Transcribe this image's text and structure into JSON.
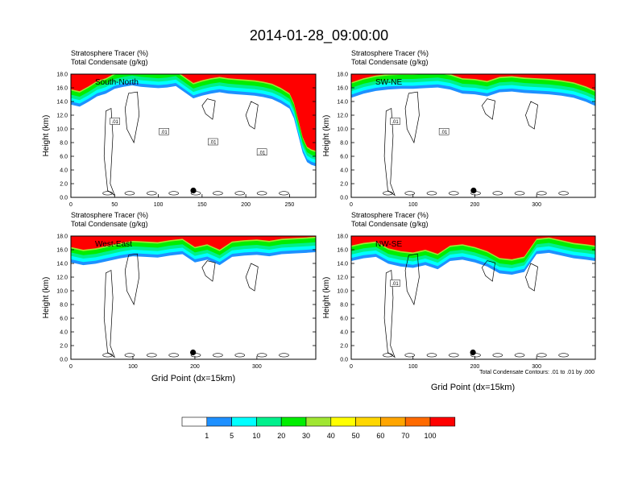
{
  "title": "2014-01-28_09:00:00",
  "panel_labels": {
    "line1": "Stratosphere Tracer   (%)",
    "line2": "Total Condensate   (g/kg)"
  },
  "x_axis_label": "Grid Point (dx=15km)",
  "y_axis_label": "Height (km)",
  "contour_note": "Total Condensate Contours: .01 to .01 by .000",
  "colorbar": {
    "labels": [
      "1",
      "5",
      "10",
      "20",
      "30",
      "40",
      "50",
      "60",
      "70",
      "100"
    ],
    "colors": [
      "#ffffff",
      "#1e90ff",
      "#00ffff",
      "#00f08c",
      "#00ee00",
      "#a0e632",
      "#ffff00",
      "#ffd700",
      "#ffa500",
      "#ff6a00",
      "#ff0000"
    ]
  },
  "chart_data": [
    {
      "type": "heatmap",
      "name": "South-North",
      "xlim": [
        0,
        280
      ],
      "ylim": [
        0,
        18
      ],
      "xticks": [
        "0",
        "50",
        "100",
        "150",
        "200",
        "250"
      ],
      "xtick_values": [
        0,
        50,
        100,
        150,
        200,
        250
      ],
      "yticks": [
        "0.0",
        "2.0",
        "4.0",
        "6.0",
        "8.0",
        "10.0",
        "12.0",
        "14.0",
        "16.0",
        "18.0"
      ],
      "tracer_front": {
        "x": [
          0,
          10,
          20,
          30,
          40,
          50,
          60,
          70,
          80,
          90,
          100,
          110,
          120,
          130,
          140,
          150,
          160,
          170,
          180,
          190,
          200,
          210,
          220,
          230,
          240,
          250,
          255,
          260,
          265,
          270,
          275,
          280
        ],
        "base_height_km": [
          13.0,
          12.7,
          13.4,
          14.2,
          14.6,
          15.3,
          15.6,
          15.8,
          15.6,
          15.5,
          15.4,
          15.5,
          15.7,
          14.8,
          13.9,
          14.3,
          14.6,
          14.8,
          14.6,
          14.5,
          14.4,
          14.3,
          14.1,
          13.8,
          13.2,
          12.4,
          11.0,
          8.5,
          6.0,
          4.6,
          4.2,
          4.0
        ]
      },
      "contour_labels": [
        ".01",
        ".01",
        ".01",
        ".01"
      ],
      "marker": {
        "x": 140,
        "y": 1.0
      }
    },
    {
      "type": "heatmap",
      "name": "SW-NE",
      "xlim": [
        0,
        395
      ],
      "ylim": [
        0,
        18
      ],
      "xticks": [
        "0",
        "100",
        "200",
        "300"
      ],
      "xtick_values": [
        0,
        100,
        200,
        300
      ],
      "yticks": [
        "0.0",
        "2.0",
        "4.0",
        "6.0",
        "8.0",
        "10.0",
        "12.0",
        "14.0",
        "16.0",
        "18.0"
      ],
      "tracer_front": {
        "x": [
          0,
          20,
          40,
          60,
          80,
          100,
          120,
          140,
          160,
          180,
          200,
          220,
          240,
          260,
          280,
          300,
          320,
          340,
          360,
          380,
          395
        ],
        "base_height_km": [
          14.0,
          14.6,
          15.0,
          15.2,
          15.3,
          15.3,
          15.4,
          15.5,
          15.2,
          14.6,
          14.5,
          14.2,
          14.8,
          14.9,
          14.7,
          14.6,
          14.5,
          14.3,
          14.0,
          13.4,
          12.8
        ]
      },
      "contour_labels": [
        ".01",
        ".01"
      ],
      "marker": {
        "x": 198,
        "y": 1.0
      }
    },
    {
      "type": "heatmap",
      "name": "West-East",
      "xlim": [
        0,
        395
      ],
      "ylim": [
        0,
        18
      ],
      "xticks": [
        "0",
        "100",
        "200",
        "300"
      ],
      "xtick_values": [
        0,
        100,
        200,
        300
      ],
      "yticks": [
        "0.0",
        "2.0",
        "4.0",
        "6.0",
        "8.0",
        "10.0",
        "12.0",
        "14.0",
        "16.0",
        "18.0"
      ],
      "tracer_front": {
        "x": [
          0,
          20,
          40,
          60,
          80,
          100,
          120,
          140,
          160,
          180,
          200,
          220,
          240,
          260,
          280,
          300,
          320,
          340,
          360,
          380,
          395
        ],
        "base_height_km": [
          13.6,
          13.2,
          13.4,
          13.8,
          14.2,
          14.5,
          14.4,
          14.3,
          14.6,
          14.8,
          13.6,
          14.0,
          13.2,
          14.4,
          14.6,
          14.7,
          14.5,
          14.8,
          14.9,
          15.0,
          15.1
        ]
      },
      "contour_labels": [],
      "marker": {
        "x": 197,
        "y": 1.0
      }
    },
    {
      "type": "heatmap",
      "name": "NW-SE",
      "xlim": [
        0,
        395
      ],
      "ylim": [
        0,
        18
      ],
      "xticks": [
        "0",
        "100",
        "200",
        "300"
      ],
      "xtick_values": [
        0,
        100,
        200,
        300
      ],
      "yticks": [
        "0.0",
        "2.0",
        "4.0",
        "6.0",
        "8.0",
        "10.0",
        "12.0",
        "14.0",
        "16.0",
        "18.0"
      ],
      "tracer_front": {
        "x": [
          0,
          20,
          40,
          60,
          80,
          100,
          120,
          140,
          160,
          180,
          200,
          220,
          240,
          260,
          280,
          300,
          320,
          340,
          360,
          380,
          395
        ],
        "base_height_km": [
          13.8,
          14.2,
          14.4,
          13.4,
          13.0,
          12.8,
          13.2,
          12.6,
          13.8,
          14.0,
          13.6,
          13.0,
          12.0,
          11.8,
          12.2,
          14.8,
          15.0,
          14.6,
          14.2,
          14.0,
          13.8
        ]
      },
      "contour_labels": [
        ".01"
      ],
      "marker": {
        "x": 197,
        "y": 1.0
      }
    }
  ]
}
